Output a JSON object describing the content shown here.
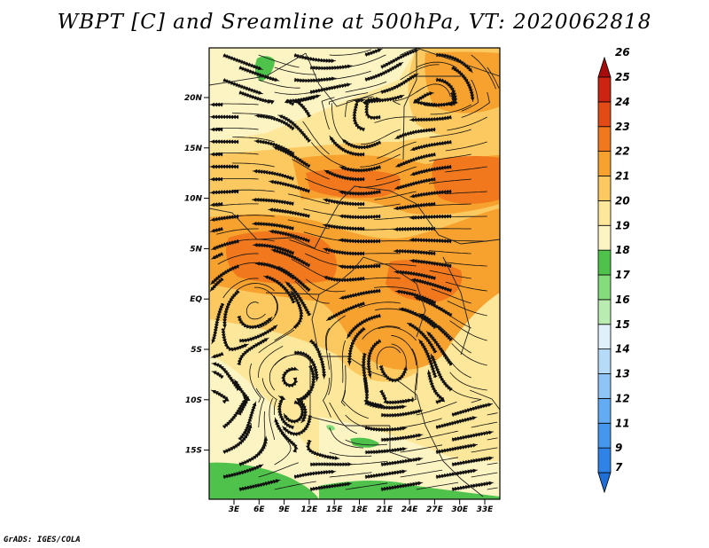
{
  "title": "WBPT [C] and Sreamline at 500hPa, VT: 2020062818",
  "credit": "GrADS: IGES/COLA",
  "lat_labels": [
    "20N",
    "15N",
    "10N",
    "5N",
    "EQ",
    "5S",
    "10S",
    "15S"
  ],
  "lon_labels": [
    "3E",
    "6E",
    "9E",
    "12E",
    "15E",
    "18E",
    "21E",
    "24E",
    "27E",
    "30E",
    "33E"
  ],
  "colorbar": {
    "levels": [
      "7",
      "9",
      "11",
      "12",
      "13",
      "14",
      "15",
      "16",
      "17",
      "18",
      "19",
      "20",
      "21",
      "22",
      "23",
      "24",
      "25",
      "26"
    ],
    "colors": [
      "#1f6fd8",
      "#2f82e6",
      "#4597ee",
      "#63abf2",
      "#8fc4f6",
      "#b6dbf8",
      "#dff0fb",
      "#b8ecb0",
      "#85dc7c",
      "#4fc24c",
      "#fdf4c4",
      "#fde79a",
      "#fbc95f",
      "#f7a12e",
      "#f1781d",
      "#e24a16",
      "#cc2312",
      "#a80b0b"
    ]
  },
  "map": {
    "fill_land": "#fdeaa8",
    "field_colors": {
      "c18": "#fdf4c4",
      "c19": "#fde79a",
      "c20": "#fbc95f",
      "c21": "#f7a12e",
      "c22": "#f1781d",
      "green": "#4fc24c",
      "lightgreen": "#85dc7c"
    }
  }
}
